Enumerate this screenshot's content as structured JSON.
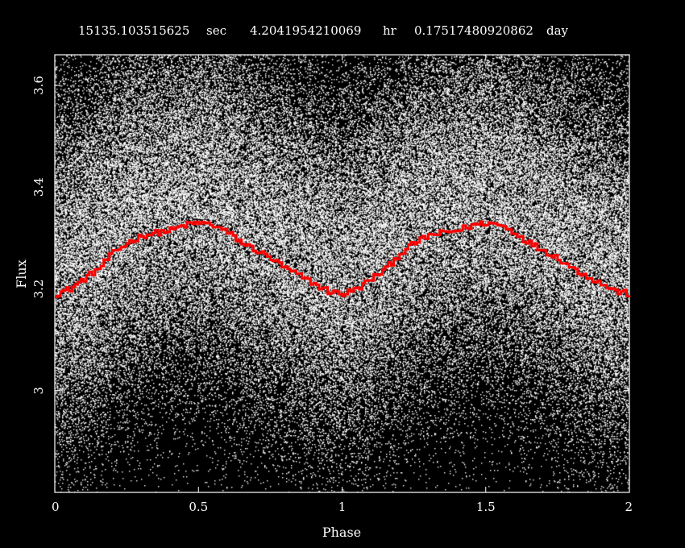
{
  "title": {
    "sec_value": "15135.103515625",
    "sec_unit": "sec",
    "hr_value": "4.2041954210069",
    "hr_unit": "hr",
    "day_value": "0.17517480920862",
    "day_unit": "day"
  },
  "chart_data": {
    "type": "scatter",
    "xlabel": "Phase",
    "ylabel": "Flux",
    "xlim": [
      0,
      2
    ],
    "ylim": [
      2.8,
      3.66
    ],
    "x_ticks": [
      0,
      0.5,
      1,
      1.5,
      2
    ],
    "x_tick_labels": [
      "0",
      "0.5",
      "1",
      "1.5",
      "2"
    ],
    "y_ticks": [
      3,
      3.2,
      3.4,
      3.6
    ],
    "y_tick_labels": [
      "3",
      "3.2",
      "3.4",
      "3.6"
    ],
    "grid": false,
    "background_color": "#000000",
    "points_color": "#ffffff",
    "binned_curve_color": "#ff0000",
    "binned_curve": {
      "phase": [
        0.0,
        0.05,
        0.1,
        0.15,
        0.2,
        0.25,
        0.3,
        0.35,
        0.4,
        0.45,
        0.5,
        0.55,
        0.6,
        0.65,
        0.7,
        0.75,
        0.8,
        0.85,
        0.9,
        0.95,
        1.0
      ],
      "flux": [
        3.19,
        3.2,
        3.22,
        3.24,
        3.27,
        3.29,
        3.305,
        3.31,
        3.315,
        3.325,
        3.33,
        3.325,
        3.31,
        3.29,
        3.275,
        3.26,
        3.24,
        3.225,
        3.21,
        3.195,
        3.19
      ],
      "repeats": 2
    }
  }
}
